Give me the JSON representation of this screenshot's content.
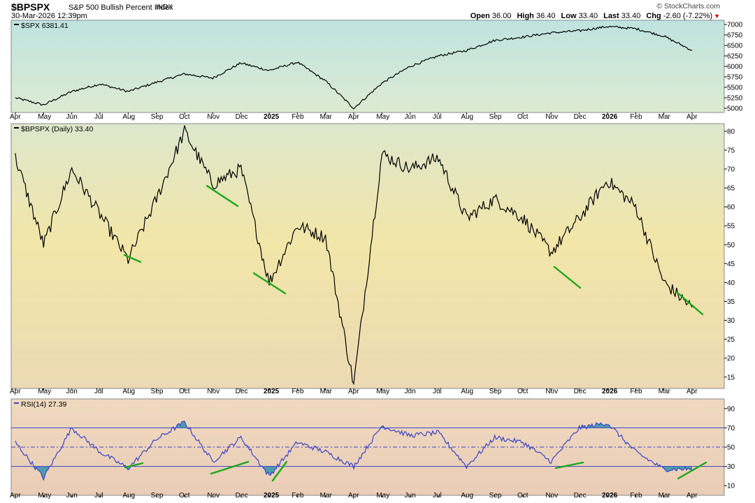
{
  "header": {
    "symbol": "$BPSPX",
    "name": "S&P 500 Bullish Percent Index",
    "exchange": "INDX",
    "date": "30-Mar-2026 12:39pm",
    "credit": "© StockCharts.com",
    "ohlc": {
      "open_label": "Open",
      "open": "36.00",
      "high_label": "High",
      "high": "36.40",
      "low_label": "Low",
      "low": "33.40",
      "last_label": "Last",
      "last": "33.40",
      "chg_label": "Chg",
      "chg": "-2.60 (-7.22%)"
    }
  },
  "colors": {
    "line": "#000000",
    "rsi_line": "#3a44c8",
    "rsi_fill": "#4f9db0",
    "divergence": "#1aa81a",
    "panel_border": "#888888"
  },
  "months": [
    "Apr",
    "May",
    "Jun",
    "Jul",
    "Aug",
    "Sep",
    "Oct",
    "Nov",
    "Dec",
    "2025",
    "Feb",
    "Mar",
    "Apr",
    "May",
    "Jun",
    "Jul",
    "Aug",
    "Sep",
    "Oct",
    "Nov",
    "Dec",
    "2026",
    "Feb",
    "Mar",
    "Apr"
  ],
  "chart_data": [
    {
      "type": "line",
      "legend": "$SPX 6381.41",
      "ylim": [
        4900,
        7100
      ],
      "yticks": [
        5000,
        5250,
        5500,
        5750,
        6000,
        6250,
        6500,
        6750,
        7000
      ],
      "x": [
        "2024-04",
        "2024-05",
        "2024-06",
        "2024-07",
        "2024-08",
        "2024-09",
        "2024-10",
        "2024-11",
        "2024-12",
        "2025-01",
        "2025-02",
        "2025-03",
        "2025-04",
        "2025-05",
        "2025-06",
        "2025-07",
        "2025-08",
        "2025-09",
        "2025-10",
        "2025-11",
        "2025-12",
        "2026-01",
        "2026-02",
        "2026-03",
        "2026-03-30"
      ],
      "values": [
        5250,
        5080,
        5400,
        5580,
        5400,
        5620,
        5820,
        5720,
        6080,
        5900,
        6100,
        5650,
        5000,
        5600,
        6000,
        6250,
        6380,
        6620,
        6700,
        6800,
        6850,
        6950,
        6900,
        6720,
        6381
      ]
    },
    {
      "type": "line",
      "legend": "$BPSPX (Daily) 33.40",
      "ylim": [
        12,
        82
      ],
      "yticks": [
        15,
        20,
        25,
        30,
        35,
        40,
        45,
        50,
        55,
        60,
        65,
        70,
        75,
        80
      ],
      "x": [
        "2024-04",
        "2024-05",
        "2024-06",
        "2024-07",
        "2024-08",
        "2024-09",
        "2024-10",
        "2024-11",
        "2024-12",
        "2025-01",
        "2025-02",
        "2025-03",
        "2025-04",
        "2025-05",
        "2025-06",
        "2025-07",
        "2025-08",
        "2025-09",
        "2025-10",
        "2025-11",
        "2025-12",
        "2026-01",
        "2026-02",
        "2026-03",
        "2026-03-30"
      ],
      "values": [
        73,
        50,
        70,
        58,
        46,
        62,
        80,
        66,
        70,
        40,
        55,
        52,
        13,
        74,
        70,
        73,
        57,
        62,
        57,
        48,
        57,
        67,
        60,
        40,
        33.4
      ]
    },
    {
      "type": "line",
      "legend": "RSI(14) 27.39",
      "ylim": [
        0,
        100
      ],
      "yticks": [
        10,
        30,
        50,
        70,
        90
      ],
      "reference_lines": [
        30,
        50,
        70
      ],
      "x": [
        "2024-04",
        "2024-05",
        "2024-06",
        "2024-07",
        "2024-08",
        "2024-09",
        "2024-10",
        "2024-11",
        "2024-12",
        "2025-01",
        "2025-02",
        "2025-03",
        "2025-04",
        "2025-05",
        "2025-06",
        "2025-07",
        "2025-08",
        "2025-09",
        "2025-10",
        "2025-11",
        "2025-12",
        "2026-01",
        "2026-02",
        "2026-03",
        "2026-03-30"
      ],
      "values": [
        55,
        18,
        70,
        45,
        28,
        58,
        76,
        35,
        60,
        20,
        55,
        45,
        30,
        72,
        62,
        65,
        30,
        60,
        55,
        35,
        70,
        75,
        45,
        27,
        27.39
      ]
    }
  ]
}
